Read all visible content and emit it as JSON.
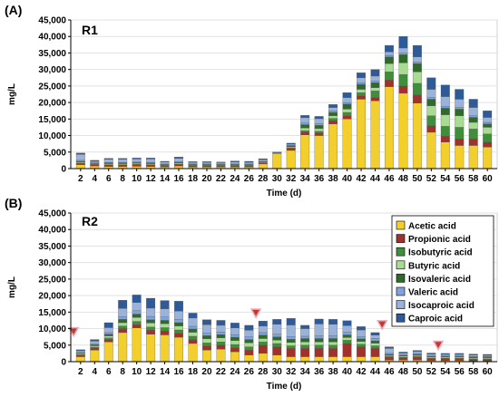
{
  "figure": {
    "panel_tags": [
      "(A)",
      "(B)"
    ]
  },
  "colors": {
    "Acetic acid": "#F2CF2C",
    "Propionic acid": "#A0312C",
    "Isobutyric acid": "#3E8E3A",
    "Butyric acid": "#A9DB95",
    "Isovaleric acid": "#2F6A2B",
    "Valeric acid": "#7FA3DA",
    "Isocaproic acid": "#9BB3D8",
    "Caproic acid": "#2E5A98",
    "marker": "#C0392B"
  },
  "chart_data": [
    {
      "type": "bar",
      "stacked": true,
      "panel": "R1",
      "xlabel": "Time (d)",
      "ylabel": "mg/L",
      "ylim": [
        0,
        45000
      ],
      "yticks": [
        "0",
        "5,000",
        "10,000",
        "15,000",
        "20,000",
        "25,000",
        "30,000",
        "35,000",
        "40,000",
        "45,000"
      ],
      "categories": [
        "2",
        "4",
        "6",
        "8",
        "10",
        "12",
        "14",
        "16",
        "18",
        "20",
        "22",
        "24",
        "26",
        "28",
        "30",
        "32",
        "34",
        "36",
        "38",
        "40",
        "42",
        "44",
        "46",
        "48",
        "50",
        "52",
        "54",
        "56",
        "58",
        "60"
      ],
      "series": [
        {
          "name": "Acetic acid",
          "values": [
            1200,
            800,
            600,
            600,
            700,
            600,
            500,
            800,
            500,
            500,
            500,
            500,
            500,
            1400,
            4500,
            5500,
            10200,
            10000,
            13500,
            15000,
            21000,
            20500,
            24800,
            22800,
            19800,
            11000,
            8000,
            7000,
            7000,
            6500
          ]
        },
        {
          "name": "Propionic acid",
          "values": [
            400,
            400,
            500,
            500,
            500,
            500,
            400,
            500,
            400,
            400,
            400,
            400,
            400,
            300,
            0,
            600,
            800,
            800,
            1000,
            1000,
            1000,
            1000,
            2000,
            2200,
            2500,
            2000,
            1800,
            2000,
            2000,
            1500
          ]
        },
        {
          "name": "Isobutyric acid",
          "values": [
            100,
            100,
            100,
            100,
            100,
            100,
            100,
            100,
            100,
            100,
            100,
            100,
            100,
            100,
            0,
            200,
            500,
            500,
            700,
            1000,
            1000,
            2000,
            2500,
            3500,
            3500,
            3000,
            3000,
            3500,
            3000,
            2500
          ]
        },
        {
          "name": "Butyric acid",
          "values": [
            300,
            200,
            300,
            300,
            300,
            300,
            200,
            300,
            200,
            200,
            200,
            200,
            200,
            200,
            0,
            300,
            800,
            800,
            800,
            1000,
            1000,
            1000,
            2500,
            3500,
            3500,
            3000,
            3500,
            3500,
            2000,
            2000
          ]
        },
        {
          "name": "Isovaleric acid",
          "values": [
            200,
            100,
            200,
            200,
            200,
            200,
            100,
            200,
            100,
            100,
            100,
            100,
            100,
            100,
            0,
            300,
            1000,
            1000,
            1000,
            1500,
            1500,
            1500,
            2000,
            2500,
            2500,
            2000,
            2000,
            2000,
            1500,
            1000
          ]
        },
        {
          "name": "Valeric acid",
          "values": [
            300,
            200,
            200,
            200,
            200,
            200,
            100,
            200,
            100,
            100,
            100,
            100,
            100,
            100,
            0,
            100,
            500,
            500,
            500,
            500,
            500,
            500,
            500,
            500,
            500,
            500,
            500,
            500,
            500,
            500
          ]
        },
        {
          "name": "Isocaproic acid",
          "values": [
            1800,
            400,
            900,
            900,
            900,
            1000,
            600,
            1000,
            500,
            500,
            400,
            600,
            500,
            500,
            300,
            400,
            1600,
            1500,
            1000,
            1500,
            1500,
            1500,
            1000,
            1500,
            1500,
            2500,
            3000,
            2500,
            2500,
            1500
          ]
        },
        {
          "name": "Caproic acid",
          "values": [
            400,
            300,
            300,
            300,
            300,
            300,
            200,
            400,
            200,
            200,
            200,
            300,
            300,
            300,
            200,
            300,
            700,
            700,
            900,
            1500,
            1500,
            2000,
            2000,
            3500,
            3500,
            3500,
            3500,
            3000,
            2500,
            2000
          ]
        }
      ]
    },
    {
      "type": "bar",
      "stacked": true,
      "panel": "R2",
      "xlabel": "Time (d)",
      "ylabel": "mg/L",
      "ylim": [
        0,
        45000
      ],
      "yticks": [
        "0",
        "5,000",
        "10,000",
        "15,000",
        "20,000",
        "25,000",
        "30,000",
        "35,000",
        "40,000",
        "45,000"
      ],
      "legend": {
        "position": "right",
        "entries": [
          "Acetic acid",
          "Propionic acid",
          "Isobutyric acid",
          "Butyric acid",
          "Isovaleric acid",
          "Valeric acid",
          "Isocaproic acid",
          "Caproic acid"
        ]
      },
      "markers_at_days": [
        1,
        27,
        45,
        53
      ],
      "categories": [
        "2",
        "4",
        "6",
        "8",
        "10",
        "12",
        "14",
        "16",
        "18",
        "20",
        "22",
        "24",
        "26",
        "28",
        "30",
        "32",
        "34",
        "36",
        "38",
        "40",
        "42",
        "44",
        "46",
        "48",
        "50",
        "52",
        "54",
        "56",
        "58",
        "60"
      ],
      "series": [
        {
          "name": "Acetic acid",
          "values": [
            1500,
            3500,
            6000,
            8800,
            10200,
            8300,
            8100,
            7400,
            5500,
            3500,
            3800,
            3000,
            2000,
            2500,
            2000,
            1500,
            1500,
            1500,
            1500,
            1500,
            1500,
            1500,
            500,
            500,
            500,
            300,
            300,
            300,
            200,
            200
          ]
        },
        {
          "name": "Propionic acid",
          "values": [
            400,
            600,
            700,
            1200,
            1000,
            1200,
            1200,
            1200,
            1200,
            1200,
            1200,
            1200,
            1500,
            2500,
            2500,
            2500,
            2500,
            2500,
            2500,
            4000,
            3000,
            2500,
            800,
            700,
            800,
            600,
            600,
            600,
            500,
            500
          ]
        },
        {
          "name": "Isobutyric acid",
          "values": [
            200,
            300,
            500,
            800,
            1000,
            1000,
            1000,
            1000,
            1000,
            1000,
            1000,
            1000,
            1000,
            1000,
            1000,
            800,
            1000,
            1000,
            1000,
            1000,
            800,
            800,
            300,
            200,
            300,
            200,
            200,
            200,
            200,
            200
          ]
        },
        {
          "name": "Butyric acid",
          "values": [
            300,
            400,
            600,
            1000,
            1200,
            1200,
            1200,
            1200,
            1200,
            1200,
            1200,
            1200,
            1200,
            1000,
            1000,
            1000,
            1000,
            1000,
            1000,
            800,
            800,
            800,
            300,
            300,
            300,
            300,
            300,
            300,
            300,
            300
          ]
        },
        {
          "name": "Isovaleric acid",
          "values": [
            200,
            300,
            500,
            1000,
            1000,
            1000,
            1000,
            1000,
            1000,
            1000,
            1000,
            1000,
            1000,
            1000,
            1000,
            1000,
            1000,
            1000,
            1000,
            800,
            800,
            700,
            300,
            200,
            300,
            200,
            200,
            200,
            200,
            200
          ]
        },
        {
          "name": "Valeric acid",
          "values": [
            200,
            300,
            500,
            800,
            1000,
            1000,
            1000,
            1000,
            800,
            800,
            800,
            800,
            800,
            800,
            800,
            800,
            700,
            800,
            800,
            800,
            700,
            700,
            300,
            200,
            300,
            200,
            200,
            200,
            200,
            200
          ]
        },
        {
          "name": "Isocaproic acid",
          "values": [
            500,
            800,
            1500,
            2500,
            2500,
            2500,
            2500,
            2500,
            2500,
            2500,
            2000,
            2000,
            2000,
            2000,
            3000,
            3500,
            2300,
            3600,
            3500,
            2000,
            2000,
            1000,
            1500,
            500,
            600,
            500,
            400,
            400,
            400,
            300
          ]
        },
        {
          "name": "Caproic acid",
          "values": [
            300,
            500,
            1500,
            2500,
            2300,
            3000,
            2500,
            3000,
            1500,
            1500,
            1500,
            1500,
            1500,
            1500,
            1500,
            2000,
            1000,
            1500,
            1500,
            1500,
            1000,
            800,
            500,
            300,
            300,
            300,
            300,
            300,
            300,
            300
          ]
        }
      ]
    }
  ]
}
